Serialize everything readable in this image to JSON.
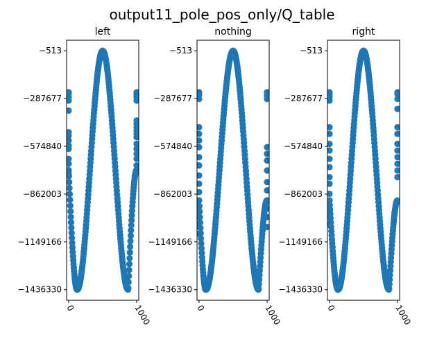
{
  "figure": {
    "suptitle": "output11_pole_pos_only/Q_table"
  },
  "chart_data": [
    {
      "type": "scatter",
      "title": "left",
      "xticks": [
        0,
        1000
      ],
      "yticks": [
        -513,
        -287677,
        -574840,
        -862003,
        -1149166,
        -1436330
      ],
      "xlim": [
        -30,
        1030
      ],
      "ylim": [
        -1500000,
        63000
      ],
      "color": "#1f77b4",
      "curve": {
        "x_start": 0,
        "x_end": 999,
        "step": 4,
        "peak_x": 500,
        "peak_y": -513,
        "trough_x": [
          125,
          875
        ],
        "trough_y": -1436330,
        "edge_y": -718000
      },
      "edge_clusters": [
        {
          "x": 0,
          "y": [
            -250000,
            -260000,
            -280000,
            -300000,
            -360000,
            -490000,
            -510000,
            -540000,
            -570000,
            -590000,
            -650000,
            -680000,
            -720000,
            -740000
          ]
        },
        {
          "x": 999,
          "y": [
            -250000,
            -265000,
            -280000,
            -300000,
            -420000,
            -440000,
            -460000,
            -480000,
            -500000,
            -520000,
            -560000,
            -590000,
            -620000,
            -650000,
            -690000
          ]
        }
      ]
    },
    {
      "type": "scatter",
      "title": "nothing",
      "xticks": [
        0,
        1000
      ],
      "yticks": [
        -513,
        -287677,
        -574840,
        -862003,
        -1149166,
        -1436330
      ],
      "xlim": [
        -30,
        1030
      ],
      "ylim": [
        -1500000,
        63000
      ],
      "color": "#1f77b4",
      "curve": {
        "x_start": 0,
        "x_end": 999,
        "step": 4,
        "peak_x": 500,
        "peak_y": -513,
        "trough_x": [
          100,
          875
        ],
        "trough_y": -1436330,
        "edge_y": -900000
      },
      "edge_clusters": [
        {
          "x": 0,
          "y": [
            -250000,
            -265000,
            -290000,
            -460000,
            -500000,
            -540000,
            -580000,
            -640000,
            -690000,
            -750000,
            -800000,
            -850000,
            -900000,
            -960000,
            -1000000,
            -1040000,
            -1100000
          ]
        },
        {
          "x": 999,
          "y": [
            -250000,
            -270000,
            -290000,
            -580000,
            -620000,
            -660000,
            -720000,
            -790000,
            -840000,
            -900000,
            -950000,
            -1000000,
            -1060000
          ]
        }
      ]
    },
    {
      "type": "scatter",
      "title": "right",
      "xticks": [
        0,
        1000
      ],
      "yticks": [
        -513,
        -287677,
        -574840,
        -862003,
        -1149166,
        -1436330
      ],
      "xlim": [
        -30,
        1030
      ],
      "ylim": [
        -1500000,
        63000
      ],
      "color": "#1f77b4",
      "curve": {
        "x_start": 0,
        "x_end": 999,
        "step": 4,
        "peak_x": 500,
        "peak_y": -513,
        "trough_x": [
          125,
          875
        ],
        "trough_y": -1436330,
        "edge_y": -900000
      },
      "edge_clusters": [
        {
          "x": 0,
          "y": [
            -250000,
            -265000,
            -280000,
            -300000,
            -460000,
            -500000,
            -560000,
            -600000,
            -650000,
            -700000,
            -760000,
            -800000,
            -860000,
            -900000,
            -960000,
            -1000000,
            -1040000
          ]
        },
        {
          "x": 999,
          "y": [
            -250000,
            -260000,
            -290000,
            -350000,
            -460000,
            -500000,
            -560000,
            -600000,
            -640000,
            -680000,
            -720000,
            -760000
          ]
        }
      ]
    }
  ]
}
